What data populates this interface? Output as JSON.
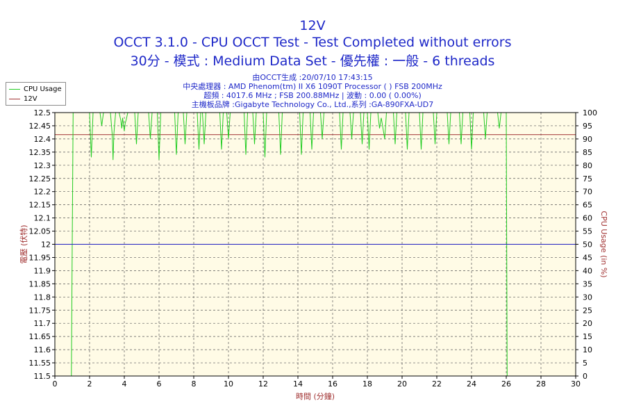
{
  "header": {
    "title": "12V",
    "subtitle1": "OCCT 3.1.0 - CPU OCCT Test - Test Completed without errors",
    "subtitle2": "30分 - 模式 : Medium Data Set - 優先權 : 一般 - 6 threads"
  },
  "info": {
    "line1": "由OCCT生成 :20/07/10 17:43:15",
    "line2": "中央處理器 : AMD Phenom(tm) II X6 1090T Processor (  ) FSB 200MHz",
    "line3": "超頻 : 4017.6 MHz ; FSB 200.88MHz | 波動 : 0.00 ( 0.00%)",
    "line4": "主機板品牌 :Gigabyte Technology Co., Ltd.,系列 :GA-890FXA-UD7"
  },
  "legend": [
    {
      "name": "CPU Usage",
      "color": "#22cc22"
    },
    {
      "name": "12V",
      "color": "#a03030"
    }
  ],
  "chart_data": {
    "type": "line",
    "xlabel": "時間 (分鐘)",
    "ylabel_left": "電壓 (伏特)",
    "ylabel_right": "CPU Usage (in %)",
    "xlim": [
      0,
      30
    ],
    "ylim_left": [
      11.5,
      12.5
    ],
    "ylim_right": [
      0,
      100
    ],
    "x_ticks": [
      0,
      2,
      4,
      6,
      8,
      10,
      12,
      14,
      16,
      18,
      20,
      22,
      24,
      26,
      28,
      30
    ],
    "y_ticks_left": [
      "11.5",
      "11.55",
      "11.6",
      "11.65",
      "11.7",
      "11.75",
      "11.8",
      "11.85",
      "11.9",
      "11.95",
      "12",
      "12.05",
      "12.1",
      "12.15",
      "12.2",
      "12.25",
      "12.3",
      "12.35",
      "12.4",
      "12.45",
      "12.5"
    ],
    "y_ticks_right": [
      0,
      5,
      10,
      15,
      20,
      25,
      30,
      35,
      40,
      45,
      50,
      55,
      60,
      65,
      70,
      75,
      80,
      85,
      90,
      95,
      100
    ],
    "grid": true,
    "series": [
      {
        "name": "12V",
        "axis": "left",
        "color": "#a03030",
        "x": [
          0,
          30
        ],
        "y": [
          12.416,
          12.416
        ]
      },
      {
        "name": "CPU Usage",
        "axis": "right",
        "color": "#22cc22",
        "x": [
          0.95,
          1.0,
          1.05,
          1.3,
          2.0,
          2.1,
          2.2,
          2.3,
          2.6,
          2.7,
          2.8,
          3.0,
          3.1,
          3.2,
          3.3,
          3.35,
          3.4,
          3.5,
          3.7,
          3.8,
          3.85,
          3.9,
          4.0,
          4.05,
          4.1,
          4.2,
          4.6,
          4.7,
          4.8,
          5.4,
          5.5,
          5.6,
          5.9,
          6.0,
          6.1,
          6.9,
          7.0,
          7.1,
          7.4,
          7.5,
          7.6,
          8.2,
          8.3,
          8.4,
          8.5,
          8.6,
          8.7,
          9.5,
          9.6,
          9.7,
          9.9,
          10.0,
          10.1,
          10.9,
          11.0,
          11.1,
          11.4,
          11.5,
          11.6,
          12.0,
          12.1,
          12.2,
          12.9,
          13.0,
          13.1,
          14.1,
          14.2,
          14.3,
          14.7,
          14.8,
          14.9,
          15.3,
          15.4,
          15.5,
          16.4,
          16.5,
          16.6,
          17.0,
          17.1,
          17.2,
          17.6,
          17.7,
          17.8,
          18.0,
          18.1,
          18.2,
          18.6,
          18.7,
          18.8,
          18.9,
          19.0,
          19.1,
          19.5,
          19.6,
          19.7,
          20.2,
          20.3,
          20.4,
          21.0,
          21.1,
          21.2,
          21.8,
          21.9,
          22.0,
          22.6,
          22.7,
          22.8,
          23.3,
          23.4,
          23.5,
          23.9,
          24.0,
          24.1,
          24.7,
          24.8,
          24.9,
          25.5,
          25.6,
          25.7,
          26.0,
          26.05,
          26.1
        ],
        "y": [
          0,
          50,
          100,
          100,
          100,
          83,
          100,
          100,
          100,
          95,
          100,
          100,
          100,
          100,
          92,
          82,
          92,
          100,
          100,
          97,
          94,
          98,
          93,
          96,
          97,
          100,
          100,
          88,
          100,
          100,
          90,
          100,
          100,
          82,
          100,
          100,
          84,
          100,
          100,
          88,
          100,
          100,
          86,
          100,
          100,
          88,
          100,
          100,
          86,
          100,
          100,
          90,
          100,
          100,
          84,
          100,
          100,
          88,
          100,
          100,
          83,
          100,
          100,
          84,
          100,
          100,
          84,
          100,
          100,
          86,
          100,
          100,
          90,
          100,
          100,
          86,
          100,
          100,
          90,
          100,
          100,
          88,
          100,
          100,
          86,
          100,
          100,
          94,
          98,
          94,
          90,
          100,
          100,
          88,
          100,
          100,
          86,
          100,
          100,
          86,
          100,
          100,
          88,
          100,
          100,
          88,
          100,
          100,
          88,
          100,
          100,
          86,
          100,
          100,
          90,
          100,
          100,
          94,
          100,
          100,
          0,
          0
        ]
      },
      {
        "name": "",
        "axis": "left",
        "color": "#2020c0",
        "x": [
          0,
          30
        ],
        "y": [
          12.0,
          12.0
        ]
      }
    ]
  }
}
